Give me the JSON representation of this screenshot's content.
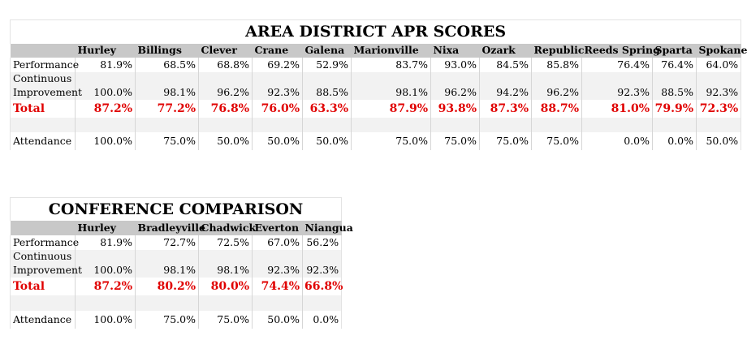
{
  "area": {
    "title": "AREA DISTRICT APR SCORES",
    "districts": [
      "Hurley",
      "Billings",
      "Clever",
      "Crane",
      "Galena",
      "Marionville",
      "Nixa",
      "Ozark",
      "Republic",
      "Reeds Spring",
      "Sparta",
      "Spokane"
    ],
    "rows": {
      "performance": {
        "label": "Performance",
        "values": [
          "81.9%",
          "68.5%",
          "68.8%",
          "69.2%",
          "52.9%",
          "83.7%",
          "93.0%",
          "84.5%",
          "85.8%",
          "76.4%",
          "76.4%",
          "64.0%"
        ]
      },
      "ci": {
        "label1": "Continuous",
        "label2": "Improvement",
        "values": [
          "100.0%",
          "98.1%",
          "96.2%",
          "92.3%",
          "88.5%",
          "98.1%",
          "96.2%",
          "94.2%",
          "96.2%",
          "92.3%",
          "88.5%",
          "92.3%"
        ]
      },
      "total": {
        "label": "Total",
        "values": [
          "87.2%",
          "77.2%",
          "76.8%",
          "76.0%",
          "63.3%",
          "87.9%",
          "93.8%",
          "87.3%",
          "88.7%",
          "81.0%",
          "79.9%",
          "72.3%"
        ]
      },
      "attendance": {
        "label": "Attendance",
        "values": [
          "100.0%",
          "75.0%",
          "50.0%",
          "50.0%",
          "50.0%",
          "75.0%",
          "75.0%",
          "75.0%",
          "75.0%",
          "0.0%",
          "0.0%",
          "50.0%"
        ]
      }
    }
  },
  "conference": {
    "title": "CONFERENCE COMPARISON",
    "districts": [
      "Hurley",
      "Bradleyville",
      "Chadwick",
      "Everton",
      "Niangua"
    ],
    "rows": {
      "performance": {
        "label": "Performance",
        "values": [
          "81.9%",
          "72.7%",
          "72.5%",
          "67.0%",
          "56.2%"
        ]
      },
      "ci": {
        "label1": "Continuous",
        "label2": "Improvement",
        "values": [
          "100.0%",
          "98.1%",
          "98.1%",
          "92.3%",
          "92.3%"
        ]
      },
      "total": {
        "label": "Total",
        "values": [
          "87.2%",
          "80.2%",
          "80.0%",
          "74.4%",
          "66.8%"
        ]
      },
      "attendance": {
        "label": "Attendance",
        "values": [
          "100.0%",
          "75.0%",
          "75.0%",
          "50.0%",
          "0.0%"
        ]
      }
    }
  },
  "colors": {
    "total_text": "#e00000",
    "header_bg": "#c8c8c8",
    "zebra_bg": "#f2f2f2"
  }
}
